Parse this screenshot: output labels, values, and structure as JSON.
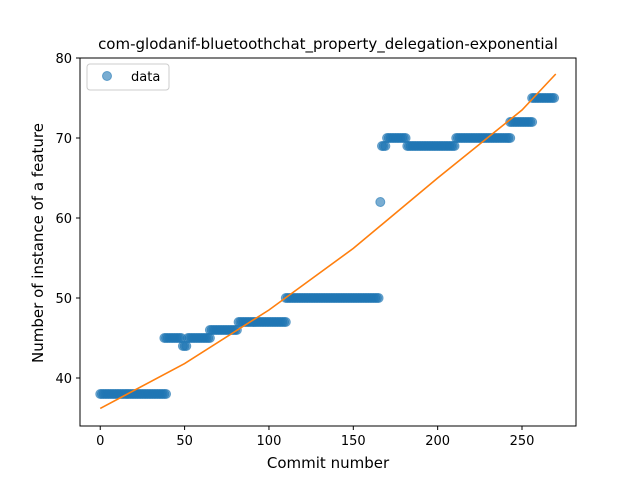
{
  "chart_data": {
    "type": "scatter",
    "title": "com-glodanif-bluetoothchat_property_delegation-exponential",
    "xlabel": "Commit number",
    "ylabel": "Number of instance of a feature",
    "xlim": [
      -12,
      282
    ],
    "ylim": [
      34,
      80
    ],
    "xticks": [
      0,
      50,
      100,
      150,
      200,
      250
    ],
    "yticks": [
      40,
      50,
      60,
      70,
      80
    ],
    "grid": false,
    "legend": {
      "placement": "top-left",
      "entries": [
        "data"
      ]
    },
    "colors": {
      "data": "#1f77b4",
      "fit": "#ff7f0e"
    },
    "series": [
      {
        "name": "data",
        "kind": "scatter",
        "segments": [
          {
            "x_start": 0,
            "x_end": 39,
            "y": 38
          },
          {
            "x_start": 38,
            "x_end": 48,
            "y": 45
          },
          {
            "x_start": 49,
            "x_end": 51,
            "y": 44
          },
          {
            "x_start": 52,
            "x_end": 65,
            "y": 45
          },
          {
            "x_start": 65,
            "x_end": 81,
            "y": 46
          },
          {
            "x_start": 82,
            "x_end": 110,
            "y": 47
          },
          {
            "x_start": 110,
            "x_end": 165,
            "y": 50
          },
          {
            "x_start": 166,
            "x_end": 166,
            "y": 62
          },
          {
            "x_start": 167,
            "x_end": 169,
            "y": 69
          },
          {
            "x_start": 170,
            "x_end": 181,
            "y": 70
          },
          {
            "x_start": 182,
            "x_end": 210,
            "y": 69
          },
          {
            "x_start": 211,
            "x_end": 243,
            "y": 70
          },
          {
            "x_start": 243,
            "x_end": 256,
            "y": 72
          },
          {
            "x_start": 256,
            "x_end": 269,
            "y": 75
          }
        ]
      },
      {
        "name": "",
        "kind": "line",
        "model": "exponential",
        "x": [
          0,
          50,
          100,
          150,
          200,
          250,
          270
        ],
        "y": [
          36.2,
          41.8,
          48.5,
          56.2,
          65.0,
          73.5,
          78.0
        ]
      }
    ]
  }
}
